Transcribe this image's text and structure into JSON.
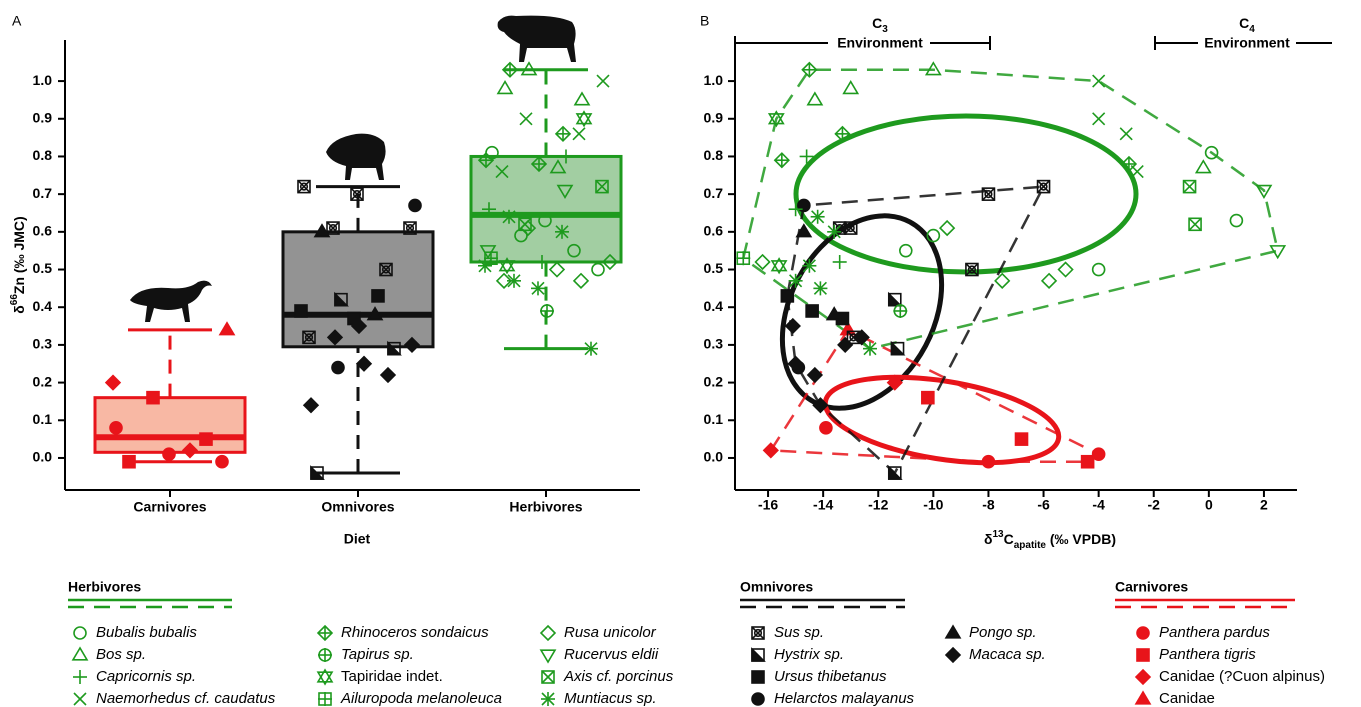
{
  "chart_data": [
    {
      "type": "box",
      "label": "A",
      "ylabel": [
        "δ",
        "66",
        "Zn (‰ JMC)"
      ],
      "xlabel": "Diet",
      "categories": [
        "Carnivores",
        "Omnivores",
        "Herbivores"
      ],
      "colors": [
        "#e8141a",
        "#111111",
        "#1e9a1e"
      ],
      "fills": [
        "#f7ab94",
        "#808080",
        "#92c592"
      ],
      "boxes": [
        {
          "whislo": -0.01,
          "q1": 0.015,
          "med": 0.055,
          "q3": 0.16,
          "whishi": 0.34
        },
        {
          "whislo": -0.04,
          "q1": 0.295,
          "med": 0.38,
          "q3": 0.6,
          "whishi": 0.72
        },
        {
          "whislo": 0.29,
          "q1": 0.52,
          "med": 0.645,
          "q3": 0.8,
          "whishi": 1.03
        }
      ],
      "ylim": [
        -0.085,
        1.109
      ],
      "yticks": [
        {
          "value": 0,
          "label": "0.0"
        },
        0.1,
        0.2,
        0.3,
        0.4,
        0.5,
        0.6,
        0.7,
        0.8,
        0.9,
        {
          "value": 1,
          "label": "1.0"
        }
      ]
    },
    {
      "type": "scatter",
      "label": "B",
      "xlabel": [
        "δ",
        "13",
        "C",
        "apatite",
        " (‰ VPDB)"
      ],
      "environments": [
        {
          "parts": [
            "C",
            "3"
          ],
          "label": "Environment"
        },
        {
          "parts": [
            "C",
            "4"
          ],
          "label": "Environment"
        }
      ],
      "xlim": [
        -17.2,
        3.2
      ],
      "xticks": [
        -16,
        -14,
        -12,
        -10,
        -8,
        -6,
        -4,
        -2,
        0,
        2
      ],
      "ylim": [
        -0.085,
        1.109
      ],
      "yticks": [
        {
          "value": 0,
          "label": "0.0"
        },
        0.1,
        0.2,
        0.3,
        0.4,
        0.5,
        0.6,
        0.7,
        0.8,
        0.9,
        {
          "value": 1,
          "label": "1.0"
        }
      ],
      "groups": [
        {
          "name": "Carnivores",
          "color": "#e8141a",
          "series": [
            {
              "name": "Panthera pardus",
              "marker": "circle-filled",
              "x": [
                -13.9,
                -4.0,
                -8.0
              ],
              "y": [
                0.08,
                0.01,
                -0.01
              ]
            },
            {
              "name": "Panthera tigris",
              "marker": "square-filled",
              "x": [
                -10.2,
                -6.8,
                -4.4
              ],
              "y": [
                0.16,
                0.05,
                -0.01
              ]
            },
            {
              "name": "Canidae (?Cuon alpinus)",
              "marker": "diamond-filled",
              "x": [
                -15.9,
                -11.4
              ],
              "y": [
                0.02,
                0.2
              ]
            },
            {
              "name": "Canidae",
              "marker": "triangle-filled",
              "x": [
                -13.1
              ],
              "y": [
                0.34
              ]
            }
          ]
        },
        {
          "name": "Omnivores",
          "color": "#111111",
          "series": [
            {
              "name": "Sus sp.",
              "marker": "square-cross-circle",
              "x": [
                -6.0,
                -8.0,
                -13.4,
                -13.0,
                -8.6,
                -12.9
              ],
              "y": [
                0.72,
                0.7,
                0.61,
                0.61,
                0.5,
                0.32
              ]
            },
            {
              "name": "Hystrix sp.",
              "marker": "square-half",
              "x": [
                -11.4,
                -11.3,
                -11.4
              ],
              "y": [
                0.42,
                0.29,
                -0.04
              ]
            },
            {
              "name": "Ursus thibetanus",
              "marker": "square-filled",
              "x": [
                -15.3,
                -14.4,
                -13.3
              ],
              "y": [
                0.43,
                0.39,
                0.37
              ]
            },
            {
              "name": "Helarctos malayanus",
              "marker": "circle-filled",
              "x": [
                -14.7,
                -14.9
              ],
              "y": [
                0.67,
                0.24
              ]
            },
            {
              "name": "Pongo sp.",
              "marker": "triangle-filled",
              "x": [
                -14.7,
                -13.6
              ],
              "y": [
                0.6,
                0.38
              ]
            },
            {
              "name": "Macaca sp.",
              "marker": "diamond-filled",
              "x": [
                -15.1,
                -13.2,
                -12.6,
                -14.3,
                -14.1,
                -15.0
              ],
              "y": [
                0.35,
                0.3,
                0.32,
                0.22,
                0.14,
                0.25
              ]
            }
          ]
        },
        {
          "name": "Herbivores",
          "color": "#1e9a1e",
          "series": [
            {
              "name": "Bubalis bubalis",
              "marker": "circle",
              "x": [
                0.1,
                1.0,
                -4.0,
                -10.0,
                -11.0
              ],
              "y": [
                0.81,
                0.63,
                0.5,
                0.59,
                0.55
              ]
            },
            {
              "name": "Bos sp.",
              "marker": "triangle",
              "x": [
                -10.0,
                -14.3,
                -13.0,
                -0.2
              ],
              "y": [
                1.03,
                0.95,
                0.98,
                0.77
              ]
            },
            {
              "name": "Capricornis sp.",
              "marker": "plus",
              "x": [
                -14.6,
                -15.0,
                -13.4
              ],
              "y": [
                0.8,
                0.66,
                0.52
              ]
            },
            {
              "name": "Naemorhedus cf. caudatus",
              "marker": "cross",
              "x": [
                -4.0,
                -4.0,
                -3.0,
                -2.6
              ],
              "y": [
                1.0,
                0.9,
                0.86,
                0.76
              ]
            },
            {
              "name": "Rhinoceros sondaicus",
              "marker": "diamond-plus",
              "x": [
                -14.5,
                -13.3,
                -15.5,
                -2.9
              ],
              "y": [
                1.03,
                0.86,
                0.79,
                0.78
              ]
            },
            {
              "name": "Tapirus sp.",
              "marker": "circle-plus",
              "x": [
                -11.2
              ],
              "y": [
                0.39
              ]
            },
            {
              "name": "Tapiridae indet.",
              "marker": "hexagram",
              "x": [
                -15.7,
                -15.6
              ],
              "y": [
                0.9,
                0.51
              ]
            },
            {
              "name": "Ailuropoda melanoleuca",
              "marker": "square-plus",
              "x": [
                -16.9
              ],
              "y": [
                0.53
              ]
            },
            {
              "name": "Rusa unicolor",
              "marker": "diamond",
              "x": [
                -9.5,
                -7.5,
                -5.8,
                -5.2,
                -16.2
              ],
              "y": [
                0.61,
                0.47,
                0.47,
                0.5,
                0.52
              ]
            },
            {
              "name": "Rucervus eldii",
              "marker": "triangle-down",
              "x": [
                2.0,
                2.5
              ],
              "y": [
                0.71,
                0.55
              ]
            },
            {
              "name": "Axis cf. porcinus",
              "marker": "square-cross",
              "x": [
                -0.7,
                -0.5
              ],
              "y": [
                0.72,
                0.62
              ]
            },
            {
              "name": "Muntiacus sp.",
              "marker": "asterisk",
              "x": [
                -14.2,
                -13.6,
                -14.5,
                -14.1,
                -12.3,
                -15.0
              ],
              "y": [
                0.64,
                0.6,
                0.51,
                0.45,
                0.29,
                0.47
              ]
            }
          ]
        }
      ]
    }
  ]
}
